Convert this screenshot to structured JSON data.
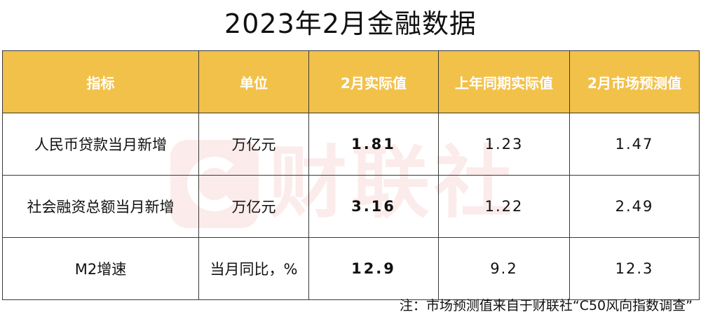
{
  "title": "2023年2月金融数据",
  "table": {
    "headers": [
      "指标",
      "单位",
      "2月实际值",
      "上年同期实际值",
      "2月市场预测值"
    ],
    "rows": [
      [
        "人民币贷款当月新增",
        "万亿元",
        "1.81",
        "1.23",
        "1.47"
      ],
      [
        "社会融资总额当月新增",
        "万亿元",
        "3.16",
        "1.22",
        "2.49"
      ],
      [
        "M2增速",
        "当月同比，%",
        "12.9",
        "9.2",
        "12.3"
      ]
    ]
  },
  "watermark": {
    "text": "财联社",
    "icon": "cailian-logo-icon"
  },
  "note": "注：市场预测值来自于财联社“C50风向指数调查”",
  "colors": {
    "header_bg": "#f2c14a",
    "actual_value": "#e0342c"
  }
}
